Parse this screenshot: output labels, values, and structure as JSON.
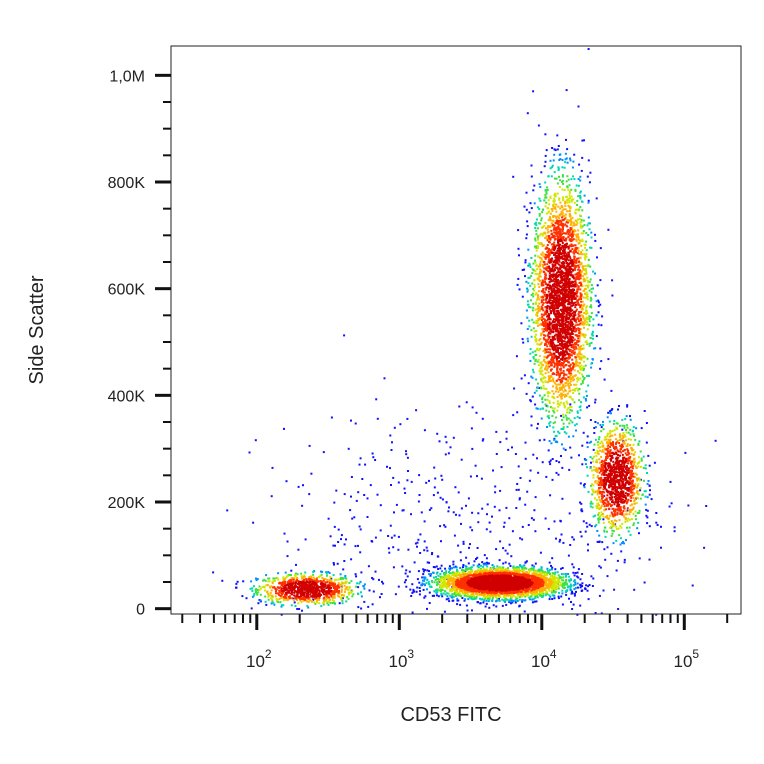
{
  "chart_data": {
    "type": "scatter",
    "title": "",
    "xlabel": "CD53 FITC",
    "ylabel": "Side Scatter",
    "x_scale": "log",
    "xlim": [
      25,
      250000
    ],
    "ylim": [
      -10000,
      1055000
    ],
    "x_ticks": [
      {
        "value": 100,
        "base": "10",
        "exp": "2"
      },
      {
        "value": 1000,
        "base": "10",
        "exp": "3"
      },
      {
        "value": 10000,
        "base": "10",
        "exp": "4"
      },
      {
        "value": 100000,
        "base": "10",
        "exp": "5"
      }
    ],
    "y_ticks": [
      {
        "value": 0,
        "label": "0"
      },
      {
        "value": 200000,
        "label": "200K"
      },
      {
        "value": 400000,
        "label": "400K"
      },
      {
        "value": 600000,
        "label": "600K"
      },
      {
        "value": 800000,
        "label": "800K"
      },
      {
        "value": 1000000,
        "label": "1,0M"
      }
    ],
    "populations": [
      {
        "name": "lymphocytes-low",
        "x_center": 220,
        "x_spread_log10": 0.17,
        "y_center": 38000,
        "y_spread": 14000,
        "points": 900
      },
      {
        "name": "lymphocytes",
        "x_center": 5000,
        "x_spread_log10": 0.22,
        "y_center": 50000,
        "y_spread": 14000,
        "points": 3500
      },
      {
        "name": "granulocytes",
        "x_center": 13500,
        "x_spread_log10": 0.1,
        "y_center": 580000,
        "y_spread": 110000,
        "points": 3200
      },
      {
        "name": "monocytes",
        "x_center": 33000,
        "x_spread_log10": 0.09,
        "y_center": 245000,
        "y_spread": 50000,
        "points": 1200
      },
      {
        "name": "background",
        "x_center": 3000,
        "x_spread_log10": 0.7,
        "y_center": 150000,
        "y_spread": 120000,
        "points": 500
      }
    ],
    "density_colors": [
      "#1010ff",
      "#0090ff",
      "#00d8b0",
      "#40e040",
      "#d0e800",
      "#ffb000",
      "#ff3000",
      "#d00000"
    ],
    "grid": false,
    "legend": "none"
  }
}
